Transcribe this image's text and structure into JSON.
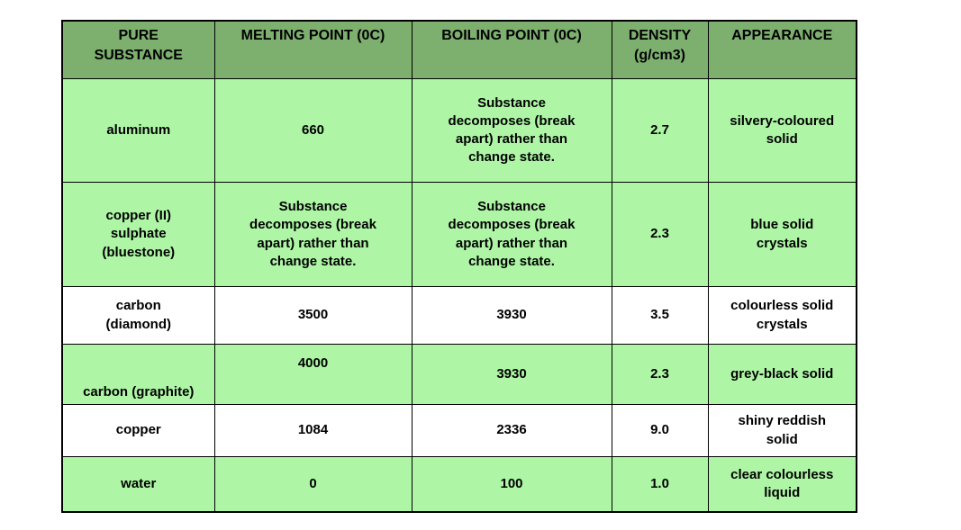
{
  "colors": {
    "header_bg": "#7db06f",
    "row_green": "#aef6a6",
    "row_white": "#ffffff",
    "border": "#000000",
    "page_bg": "#ffffff"
  },
  "table": {
    "columns": [
      {
        "id": "substance",
        "label": "PURE\nSUBSTANCE"
      },
      {
        "id": "melting",
        "label": "MELTING POINT (0C)"
      },
      {
        "id": "boiling",
        "label": "BOILING POINT (0C)"
      },
      {
        "id": "density",
        "label": "DENSITY\n(g/cm3)"
      },
      {
        "id": "appearance",
        "label": "APPEARANCE"
      }
    ],
    "rows": [
      {
        "substance": "aluminum",
        "melting": "660",
        "boiling": "Substance\ndecomposes (break\napart) rather than\nchange state.",
        "density": "2.7",
        "appearance": "silvery-coloured\nsolid",
        "shade": "green"
      },
      {
        "substance": "copper (II)\nsulphate\n(bluestone)",
        "melting": "Substance\ndecomposes (break\napart) rather than\nchange state.",
        "boiling": "Substance\ndecomposes (break\napart) rather than\nchange state.",
        "density": "2.3",
        "appearance": "blue solid\ncrystals",
        "shade": "green"
      },
      {
        "substance": "carbon\n(diamond)",
        "melting": "3500",
        "boiling": "3930",
        "density": "3.5",
        "appearance": "colourless solid\ncrystals",
        "shade": "white"
      },
      {
        "substance": "carbon (graphite)",
        "melting": "4000",
        "boiling": "3930",
        "density": "2.3",
        "appearance": "grey-black solid",
        "shade": "green"
      },
      {
        "substance": "copper",
        "melting": "1084",
        "boiling": "2336",
        "density": "9.0",
        "appearance": "shiny reddish\nsolid",
        "shade": "white"
      },
      {
        "substance": "water",
        "melting": "0",
        "boiling": "100",
        "density": "1.0",
        "appearance": "clear colourless\nliquid",
        "shade": "green"
      }
    ]
  }
}
